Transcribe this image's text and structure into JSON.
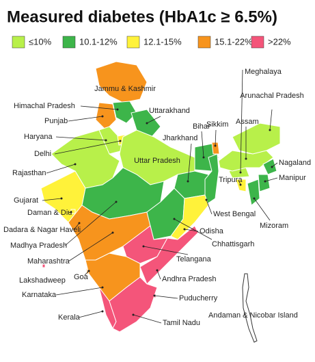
{
  "title": "Measured diabetes (HbA1c ≥ 6.5%)",
  "legend": [
    {
      "label": "≤10%",
      "color": "#b8f04a"
    },
    {
      "label": "10.1-12%",
      "color": "#3db54a"
    },
    {
      "label": "12.1-15%",
      "color": "#fff23a"
    },
    {
      "label": "15.1-22%",
      "color": "#f7941d"
    },
    {
      "label": ">22%",
      "color": "#f4557a"
    }
  ],
  "regions": [
    {
      "label": "Jammu & Kashmir",
      "category": 3
    },
    {
      "label": "Himachal Pradesh",
      "category": 1
    },
    {
      "label": "Punjab",
      "category": 3
    },
    {
      "label": "Uttarakhand",
      "category": 1
    },
    {
      "label": "Haryana",
      "category": 0
    },
    {
      "label": "Delhi",
      "category": 2
    },
    {
      "label": "Rajasthan",
      "category": 0
    },
    {
      "label": "Uttar Pradesh",
      "category": 0
    },
    {
      "label": "Bihar",
      "category": 1
    },
    {
      "label": "Jharkhand",
      "category": 1
    },
    {
      "label": "Sikkim",
      "category": 3
    },
    {
      "label": "Arunachal Pradesh",
      "category": 0
    },
    {
      "label": "Meghalaya",
      "category": 0
    },
    {
      "label": "Assam",
      "category": 0
    },
    {
      "label": "Nagaland",
      "category": 1
    },
    {
      "label": "Manipur",
      "category": 1
    },
    {
      "label": "Mizoram",
      "category": 1
    },
    {
      "label": "Tripura",
      "category": 2
    },
    {
      "label": "West Bengal",
      "category": 1
    },
    {
      "label": "Gujarat",
      "category": 2
    },
    {
      "label": "Daman & Diu",
      "category": 2
    },
    {
      "label": "Dadara & Nagar Haveli",
      "category": 3
    },
    {
      "label": "Madhya Pradesh",
      "category": 1
    },
    {
      "label": "Maharashtra",
      "category": 3
    },
    {
      "label": "Chhattisgarh",
      "category": 1
    },
    {
      "label": "Odisha",
      "category": 2
    },
    {
      "label": "Telangana",
      "category": 4
    },
    {
      "label": "Goa",
      "category": 3
    },
    {
      "label": "Lakshadweep",
      "category": 4
    },
    {
      "label": "Andhra Pradesh",
      "category": 4
    },
    {
      "label": "Karnataka",
      "category": 3
    },
    {
      "label": "Puducherry",
      "category": 4
    },
    {
      "label": "Kerala",
      "category": 4
    },
    {
      "label": "Tamil Nadu",
      "category": 4
    },
    {
      "label": "Andaman & Nicobar Island",
      "category": null
    }
  ]
}
